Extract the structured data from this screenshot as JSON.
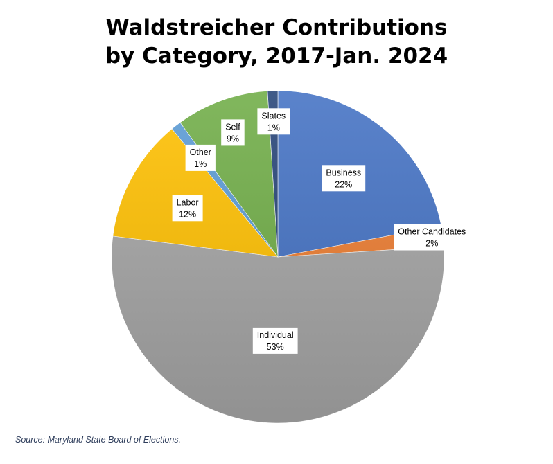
{
  "chart_data": {
    "type": "pie",
    "title_lines": [
      "Waldstreicher Contributions",
      "by Category, 2017-Jan. 2024"
    ],
    "slices": [
      {
        "name": "Business",
        "value": 22,
        "label": "22%",
        "color": "#4472c4"
      },
      {
        "name": "Other Candidates",
        "value": 2,
        "label": "2%",
        "color": "#ed7d31"
      },
      {
        "name": "Individual",
        "value": 53,
        "label": "53%",
        "color": "#a5a5a5"
      },
      {
        "name": "Labor",
        "value": 12,
        "label": "12%",
        "color": "#ffc000"
      },
      {
        "name": "Other",
        "value": 1,
        "label": "1%",
        "color": "#5b9bd5"
      },
      {
        "name": "Self",
        "value": 9,
        "label": "9%",
        "color": "#70ad47"
      },
      {
        "name": "Slates",
        "value": 1,
        "label": "1%",
        "color": "#264478"
      }
    ],
    "start_angle_deg": 0,
    "direction": "clockwise",
    "legend": "none"
  },
  "footer": {
    "source": "Source: Maryland State Board of Elections."
  }
}
